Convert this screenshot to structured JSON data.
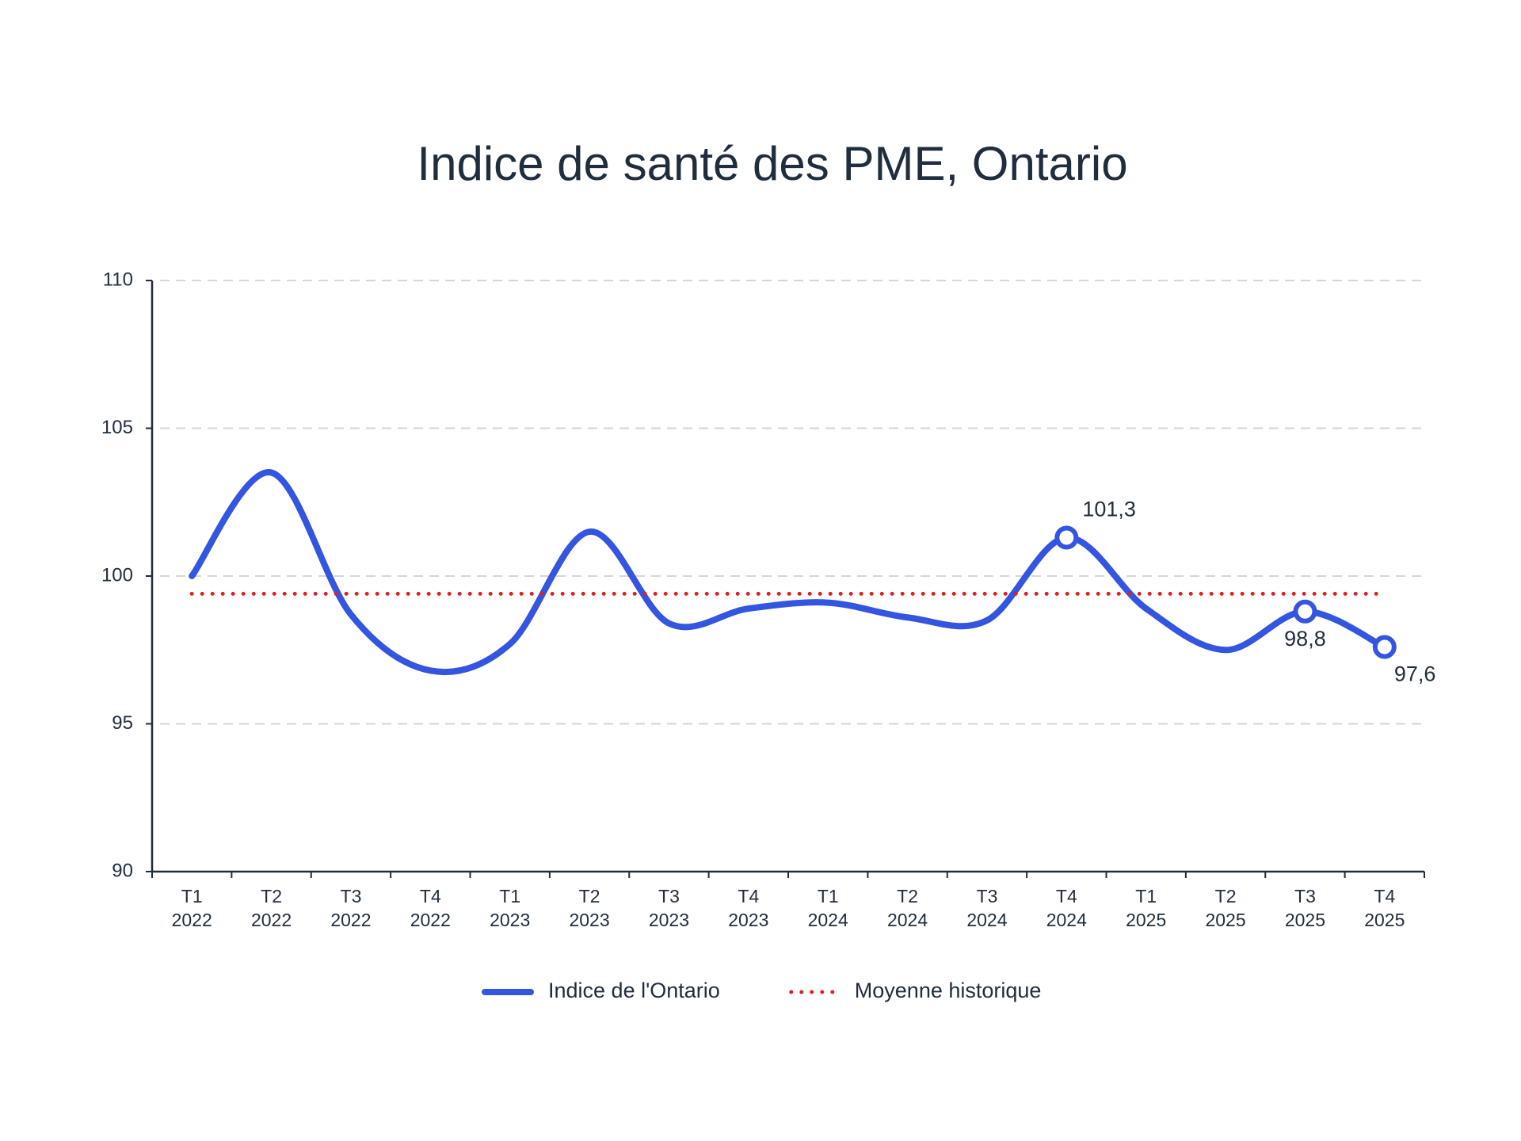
{
  "chart_data": {
    "type": "line",
    "title": "Indice de santé des PME, Ontario",
    "categories": [
      "T1 2022",
      "T2 2022",
      "T3 2022",
      "T4 2022",
      "T1 2023",
      "T2 2023",
      "T3 2023",
      "T4 2023",
      "T1 2024",
      "T2 2024",
      "T3 2024",
      "T4 2024",
      "T1 2025",
      "T2 2025",
      "T3 2025",
      "T4 2025"
    ],
    "series": [
      {
        "name": "Indice de l'Ontario",
        "color": "#3355e0",
        "values": [
          100.0,
          103.5,
          98.7,
          96.8,
          97.7,
          101.5,
          98.4,
          98.9,
          99.1,
          98.6,
          98.5,
          101.3,
          98.9,
          97.5,
          98.8,
          97.6
        ],
        "value_labels": [
          null,
          null,
          null,
          null,
          null,
          null,
          null,
          null,
          null,
          null,
          null,
          "101,3",
          null,
          null,
          "98,8",
          "97,6"
        ]
      },
      {
        "name": "Moyenne historique",
        "color": "#e02020",
        "style": "dotted",
        "values": [
          99.4,
          99.4,
          99.4,
          99.4,
          99.4,
          99.4,
          99.4,
          99.4,
          99.4,
          99.4,
          99.4,
          99.4,
          99.4,
          99.4,
          99.4,
          99.4
        ]
      }
    ],
    "ylim": [
      90,
      110
    ],
    "yticks": [
      90,
      95,
      100,
      105,
      110
    ],
    "grid": true,
    "legend": "bottom"
  }
}
